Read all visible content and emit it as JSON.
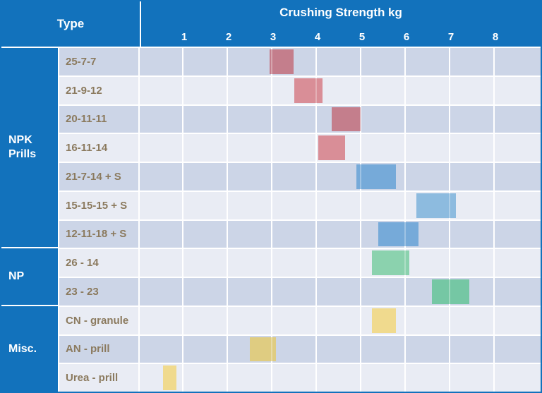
{
  "header": {
    "type_label": "Type",
    "axis_title": "Crushing Strength kg",
    "ticks": [
      "1",
      "2",
      "3",
      "4",
      "5",
      "6",
      "7",
      "8"
    ]
  },
  "groups": [
    {
      "label": "NPK Prills",
      "row_span": 7
    },
    {
      "label": "NP",
      "row_span": 2
    },
    {
      "label": "Misc.",
      "row_span": 3
    }
  ],
  "rows": [
    {
      "label": "25-7-7",
      "group": "NPK Prills",
      "min": 2.95,
      "max": 3.5,
      "bar_color": "#c47e8c"
    },
    {
      "label": "21-9-12",
      "group": "NPK Prills",
      "min": 3.5,
      "max": 4.15,
      "bar_color": "#d98e97"
    },
    {
      "label": "20-11-11",
      "group": "NPK Prills",
      "min": 4.35,
      "max": 5.0,
      "bar_color": "#c47e8c"
    },
    {
      "label": "16-11-14",
      "group": "NPK Prills",
      "min": 4.05,
      "max": 4.65,
      "bar_color": "#d98e97"
    },
    {
      "label": "21-7-14 + S",
      "group": "NPK Prills",
      "min": 4.9,
      "max": 5.8,
      "bar_color": "#76aad9"
    },
    {
      "label": "15-15-15 + S",
      "group": "NPK Prills",
      "min": 6.25,
      "max": 7.15,
      "bar_color": "#8dbbdf"
    },
    {
      "label": "12-11-18 + S",
      "group": "NPK Prills",
      "min": 5.4,
      "max": 6.3,
      "bar_color": "#76aad9"
    },
    {
      "label": "26 - 14",
      "group": "NP",
      "min": 5.25,
      "max": 6.1,
      "bar_color": "#8bd2ae"
    },
    {
      "label": "23 - 23",
      "group": "NP",
      "min": 6.6,
      "max": 7.45,
      "bar_color": "#75c7a4"
    },
    {
      "label": "CN - granule",
      "group": "Misc.",
      "min": 5.25,
      "max": 5.8,
      "bar_color": "#f0da8e"
    },
    {
      "label": "AN - prill",
      "group": "Misc.",
      "min": 2.5,
      "max": 3.1,
      "bar_color": "#dfcc81"
    },
    {
      "label": "Urea - prill",
      "group": "Misc.",
      "min": 0.55,
      "max": 0.85,
      "bar_color": "#f0da8e"
    }
  ],
  "colors": {
    "header_blue": "#1272bc",
    "row_dark": "#ccd5e7",
    "row_light": "#e9ecf4",
    "label_text": "#8b7a5e",
    "gridline": "#ffffff"
  },
  "chart_data": {
    "type": "bar",
    "subtype": "horizontal floating range bars (Gantt-style)",
    "title": "Crushing Strength kg",
    "xlabel": "Crushing Strength kg",
    "ylabel": "Type",
    "xlim": [
      0,
      9
    ],
    "xticks": [
      1,
      2,
      3,
      4,
      5,
      6,
      7,
      8
    ],
    "grid": true,
    "legend": false,
    "categories": [
      "25-7-7",
      "21-9-12",
      "20-11-11",
      "16-11-14",
      "21-7-14 + S",
      "15-15-15 + S",
      "12-11-18 + S",
      "26 - 14",
      "23 - 23",
      "CN - granule",
      "AN - prill",
      "Urea - prill"
    ],
    "series": [
      {
        "name": "25-7-7",
        "group": "NPK Prills",
        "range_kg": [
          2.95,
          3.5
        ]
      },
      {
        "name": "21-9-12",
        "group": "NPK Prills",
        "range_kg": [
          3.5,
          4.15
        ]
      },
      {
        "name": "20-11-11",
        "group": "NPK Prills",
        "range_kg": [
          4.35,
          5.0
        ]
      },
      {
        "name": "16-11-14",
        "group": "NPK Prills",
        "range_kg": [
          4.05,
          4.65
        ]
      },
      {
        "name": "21-7-14 + S",
        "group": "NPK Prills",
        "range_kg": [
          4.9,
          5.8
        ]
      },
      {
        "name": "15-15-15 + S",
        "group": "NPK Prills",
        "range_kg": [
          6.25,
          7.15
        ]
      },
      {
        "name": "12-11-18 + S",
        "group": "NPK Prills",
        "range_kg": [
          5.4,
          6.3
        ]
      },
      {
        "name": "26 - 14",
        "group": "NP",
        "range_kg": [
          5.25,
          6.1
        ]
      },
      {
        "name": "23 - 23",
        "group": "NP",
        "range_kg": [
          6.6,
          7.45
        ]
      },
      {
        "name": "CN - granule",
        "group": "Misc.",
        "range_kg": [
          5.25,
          5.8
        ]
      },
      {
        "name": "AN - prill",
        "group": "Misc.",
        "range_kg": [
          2.5,
          3.1
        ]
      },
      {
        "name": "Urea - prill",
        "group": "Misc.",
        "range_kg": [
          0.55,
          0.85
        ]
      }
    ]
  }
}
